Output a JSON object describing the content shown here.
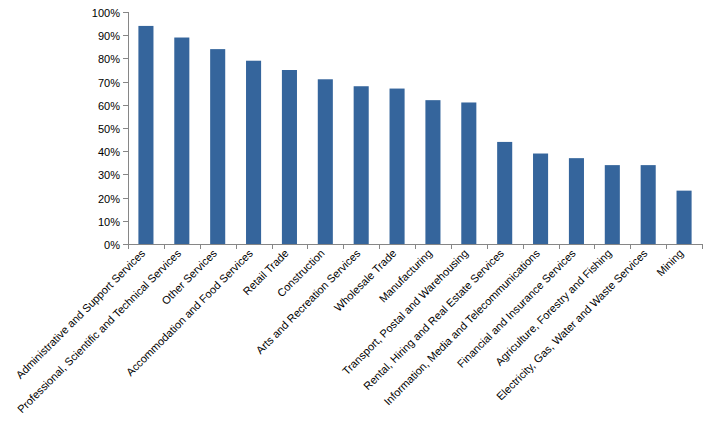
{
  "chart_data": {
    "type": "bar",
    "categories": [
      "Administrative and Support Services",
      "Professional, Scientific and Technical Services",
      "Other Services",
      "Accommodation and Food Services",
      "Retail Trade",
      "Construction",
      "Arts and Recreation Services",
      "Wholesale Trade",
      "Manufacturing",
      "Transport, Postal and Warehousing",
      "Rental, Hiring and Real Estate Services",
      "Information, Media and Telecommunications",
      "Financial and Insurance Services",
      "Agriculture, Forestry and Fishing",
      "Electricity, Gas, Water and Waste Services",
      "Mining"
    ],
    "values": [
      94,
      89,
      84,
      79,
      75,
      71,
      68,
      67,
      62,
      61,
      44,
      39,
      37,
      34,
      34,
      23
    ],
    "color": "#35659c",
    "ylim": [
      0,
      100
    ],
    "yticks": [
      {
        "value": 0,
        "label": "0%"
      },
      {
        "value": 10,
        "label": "10%"
      },
      {
        "value": 20,
        "label": "20%"
      },
      {
        "value": 30,
        "label": "30%"
      },
      {
        "value": 40,
        "label": "40%"
      },
      {
        "value": 50,
        "label": "50%"
      },
      {
        "value": 60,
        "label": "60%"
      },
      {
        "value": 70,
        "label": "70%"
      },
      {
        "value": 80,
        "label": "80%"
      },
      {
        "value": 90,
        "label": "90%"
      },
      {
        "value": 100,
        "label": "100%"
      }
    ],
    "grid": false
  }
}
